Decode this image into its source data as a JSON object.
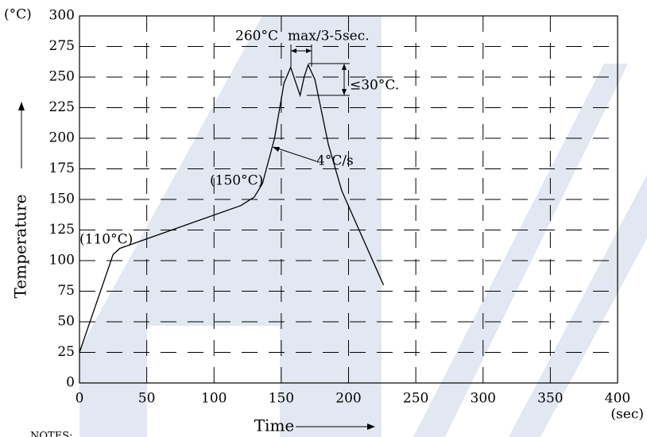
{
  "chart_data": {
    "type": "line",
    "x_label": "Time",
    "y_label": "Temperature",
    "x_unit": "(sec)",
    "y_unit": "(°C)",
    "x": [
      0,
      25,
      30,
      120,
      130,
      136,
      145,
      152,
      157,
      160,
      164,
      167,
      170,
      175,
      185,
      195,
      226
    ],
    "values": [
      25,
      105,
      110,
      145,
      152,
      163,
      200,
      245,
      258,
      248,
      235,
      250,
      260,
      248,
      195,
      157,
      80
    ],
    "color": "#000000",
    "xlim": [
      0,
      400
    ],
    "xticks": [
      0,
      50,
      100,
      150,
      200,
      250,
      300,
      350,
      400
    ],
    "ylim": [
      0,
      300
    ],
    "yticks": [
      0,
      25,
      50,
      75,
      100,
      125,
      150,
      175,
      200,
      225,
      250,
      275,
      300
    ],
    "grid": true,
    "annotations": [
      "(110°C)",
      "(150°C)",
      "260°C",
      "max/3-5sec.",
      "≤30°C.",
      "4°C/s",
      "NOTES:"
    ]
  }
}
